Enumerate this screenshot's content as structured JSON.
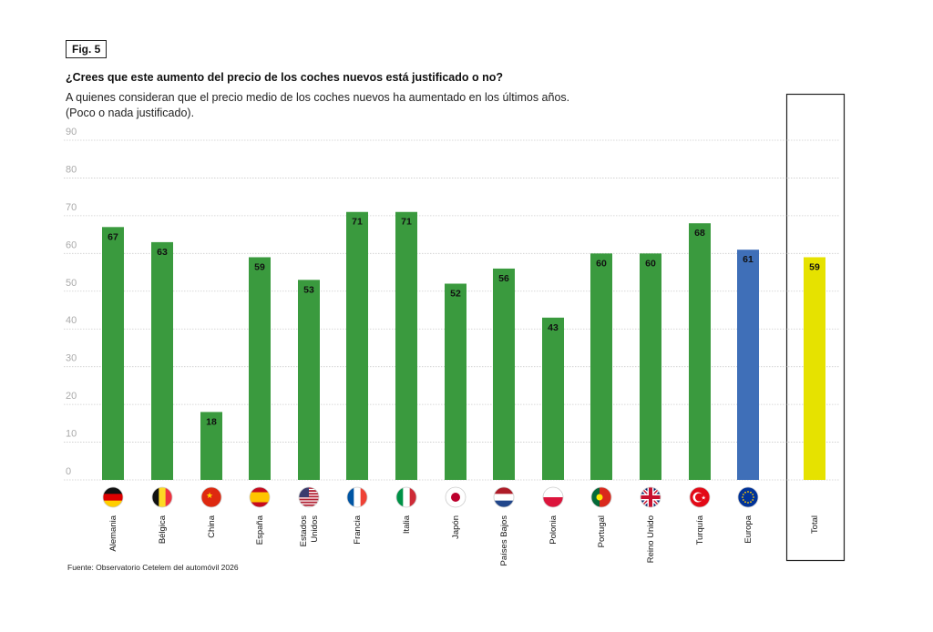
{
  "figure_label": "Fig. 5",
  "chart_data": {
    "type": "bar",
    "title": "¿Crees que este aumento del precio de los coches nuevos está justificado o no?",
    "subtitle_lines": [
      "A quienes consideran que el precio medio de los coches nuevos ha aumentado en los últimos años.",
      "(Poco o nada justificado)."
    ],
    "xlabel": "",
    "ylabel": "",
    "ylim": [
      0,
      90
    ],
    "yticks": [
      0,
      10,
      20,
      30,
      40,
      50,
      60,
      70,
      80,
      90
    ],
    "grid": true,
    "categories": [
      "Alemania",
      "Bélgica",
      "China",
      "España",
      "Estados Unidos",
      "Francia",
      "Italia",
      "Japón",
      "Países Bajos",
      "Polonia",
      "Portugal",
      "Reino Unido",
      "Turquía",
      "Europa",
      "Total"
    ],
    "values": [
      67,
      63,
      18,
      59,
      53,
      71,
      71,
      52,
      56,
      43,
      60,
      60,
      68,
      61,
      59
    ],
    "bar_colors": {
      "country": "#3a9a3e",
      "Europa": "#3f6fb8",
      "Total": "#e6e200"
    },
    "flag_icons": [
      "germany-flag",
      "belgium-flag",
      "china-flag",
      "spain-flag",
      "usa-flag",
      "france-flag",
      "italy-flag",
      "japan-flag",
      "netherlands-flag",
      "poland-flag",
      "portugal-flag",
      "uk-flag",
      "turkey-flag",
      "eu-flag"
    ]
  },
  "source": "Fuente: Observatorio Cetelem del automóvil 2026"
}
